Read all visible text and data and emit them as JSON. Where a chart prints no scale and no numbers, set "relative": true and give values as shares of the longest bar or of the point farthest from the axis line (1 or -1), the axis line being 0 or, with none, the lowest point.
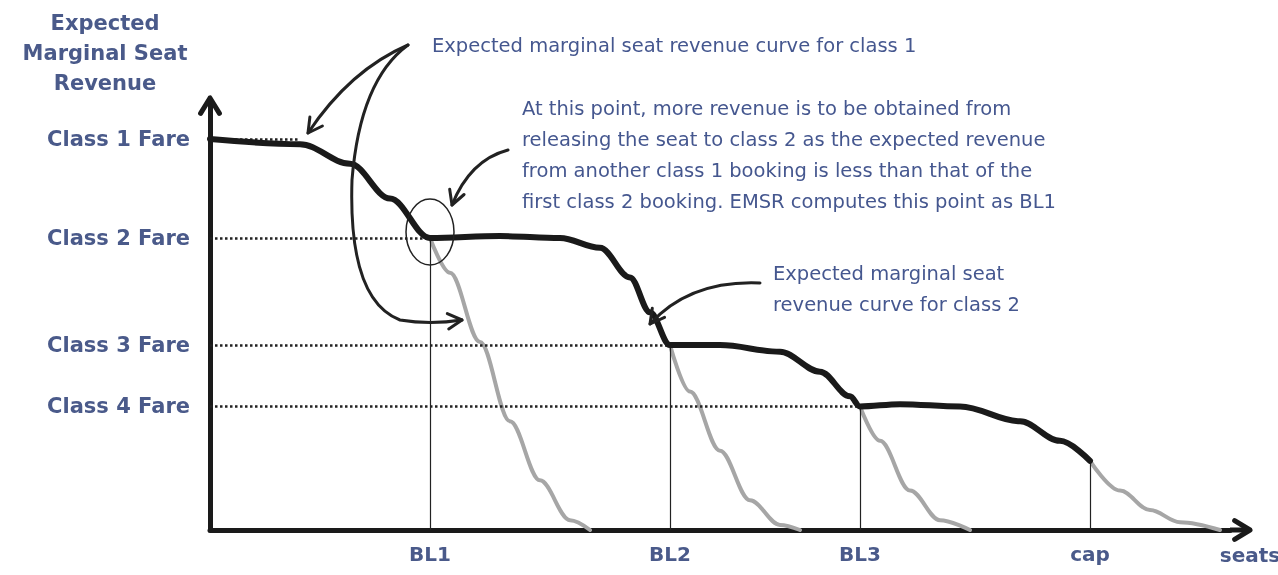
{
  "chart_data": {
    "type": "line",
    "relative": true,
    "xlabel": "seats",
    "ylabel": "Expected Marginal Seat Revenue",
    "grid": false,
    "marker": "none",
    "annotations": [
      "Expected marginal seat revenue curve for class 1",
      "At this point, more revenue is to be obtained from releasing the seat to class 2 as the expected revenue from another class 1 booking is less than that of the first class 2 booking.  EMSR computes this point as BL1",
      "Expected marginal seat revenue curve for class 2"
    ],
    "categories": [
      null,
      null,
      null,
      null,
      null,
      null,
      null,
      null,
      null,
      null,
      null,
      null,
      null,
      null,
      null,
      null,
      null,
      null,
      null,
      null,
      null,
      null,
      "BL1",
      null,
      null,
      null,
      null,
      null,
      null,
      null,
      null,
      null,
      null,
      null,
      null,
      null,
      null,
      null,
      null,
      null,
      null,
      null,
      null,
      null,
      null,
      null,
      "BL2",
      null,
      null,
      null,
      null,
      null,
      null,
      null,
      null,
      null,
      null,
      null,
      null,
      null,
      null,
      null,
      null,
      null,
      null,
      "BL3",
      null,
      null,
      null,
      null,
      null,
      null,
      null,
      null,
      null,
      null,
      null,
      null,
      null,
      null,
      null,
      null,
      null,
      null,
      null,
      null,
      null,
      null,
      "cap",
      null,
      null,
      null,
      null,
      null,
      null,
      null,
      null,
      null,
      null,
      null,
      null,
      null,
      null
    ],
    "series": [
      {
        "color": "#1a1a1a",
        "values": [
          1.0,
          null,
          null,
          null,
          null,
          null,
          null,
          null,
          null,
          0.987,
          null,
          null,
          null,
          null,
          0.937,
          null,
          null,
          null,
          0.848,
          null,
          null,
          null,
          0.747,
          null,
          null,
          null,
          null,
          null,
          null,
          0.752,
          null,
          null,
          null,
          null,
          null,
          0.747,
          null,
          null,
          null,
          0.722,
          null,
          null,
          0.646,
          null,
          0.557,
          null,
          0.473,
          null,
          null,
          null,
          null,
          0.473,
          null,
          null,
          null,
          null,
          null,
          0.456,
          null,
          null,
          null,
          0.405,
          null,
          null,
          0.342,
          0.316,
          null,
          null,
          null,
          0.322,
          null,
          null,
          null,
          null,
          null,
          0.316,
          null,
          null,
          null,
          null,
          null,
          0.278,
          null,
          null,
          null,
          0.228,
          null,
          null,
          0.177,
          null,
          null,
          null,
          null,
          null,
          null,
          null,
          null,
          null,
          null,
          null,
          null,
          null,
          null
        ]
      },
      {
        "color": "#a6a6a6",
        "values": [
          null,
          null,
          null,
          null,
          null,
          null,
          null,
          null,
          null,
          null,
          null,
          null,
          null,
          null,
          null,
          null,
          null,
          null,
          null,
          null,
          null,
          null,
          0.747,
          null,
          0.658,
          null,
          null,
          0.481,
          null,
          null,
          0.278,
          null,
          null,
          0.127,
          null,
          null,
          0.025,
          null,
          0,
          null,
          null,
          null,
          null,
          null,
          null,
          null,
          null,
          null,
          null,
          null,
          null,
          null,
          null,
          null,
          null,
          null,
          null,
          null,
          null,
          null,
          null,
          null,
          null,
          null,
          null,
          null,
          null,
          null,
          null,
          null,
          null,
          null,
          null,
          null,
          null,
          null,
          null,
          null,
          null,
          null,
          null,
          null,
          null,
          null,
          null,
          null,
          null,
          null,
          null,
          null,
          null,
          null,
          null,
          null,
          null,
          null,
          null,
          null,
          null,
          null,
          null,
          null,
          null
        ]
      },
      {
        "color": "#a6a6a6",
        "values": [
          null,
          null,
          null,
          null,
          null,
          null,
          null,
          null,
          null,
          null,
          null,
          null,
          null,
          null,
          null,
          null,
          null,
          null,
          null,
          null,
          null,
          null,
          null,
          null,
          null,
          null,
          null,
          null,
          null,
          null,
          null,
          null,
          null,
          null,
          null,
          null,
          null,
          null,
          null,
          null,
          null,
          null,
          null,
          null,
          null,
          null,
          0.473,
          null,
          0.354,
          null,
          null,
          0.203,
          null,
          null,
          0.076,
          null,
          null,
          0.013,
          null,
          0,
          null,
          null,
          null,
          null,
          null,
          null,
          null,
          null,
          null,
          null,
          null,
          null,
          null,
          null,
          null,
          null,
          null,
          null,
          null,
          null,
          null,
          null,
          null,
          null,
          null,
          null,
          null,
          null,
          null,
          null,
          null,
          null,
          null,
          null,
          null,
          null,
          null,
          null,
          null,
          null,
          null,
          null,
          null
        ]
      },
      {
        "color": "#a6a6a6",
        "values": [
          null,
          null,
          null,
          null,
          null,
          null,
          null,
          null,
          null,
          null,
          null,
          null,
          null,
          null,
          null,
          null,
          null,
          null,
          null,
          null,
          null,
          null,
          null,
          null,
          null,
          null,
          null,
          null,
          null,
          null,
          null,
          null,
          null,
          null,
          null,
          null,
          null,
          null,
          null,
          null,
          null,
          null,
          null,
          null,
          null,
          null,
          null,
          null,
          null,
          null,
          null,
          null,
          null,
          null,
          null,
          null,
          null,
          null,
          null,
          null,
          null,
          null,
          null,
          null,
          null,
          0.316,
          null,
          0.228,
          null,
          null,
          0.101,
          null,
          null,
          0.025,
          null,
          null,
          0,
          null,
          null,
          null,
          null,
          null,
          null,
          null,
          null,
          null,
          null,
          null,
          null,
          null,
          null,
          null,
          null,
          null,
          null,
          null,
          null,
          null,
          null,
          null,
          null,
          null,
          null
        ]
      },
      {
        "color": "#a6a6a6",
        "values": [
          null,
          null,
          null,
          null,
          null,
          null,
          null,
          null,
          null,
          null,
          null,
          null,
          null,
          null,
          null,
          null,
          null,
          null,
          null,
          null,
          null,
          null,
          null,
          null,
          null,
          null,
          null,
          null,
          null,
          null,
          null,
          null,
          null,
          null,
          null,
          null,
          null,
          null,
          null,
          null,
          null,
          null,
          null,
          null,
          null,
          null,
          null,
          null,
          null,
          null,
          null,
          null,
          null,
          null,
          null,
          null,
          null,
          null,
          null,
          null,
          null,
          null,
          null,
          null,
          null,
          null,
          null,
          null,
          null,
          null,
          null,
          null,
          null,
          null,
          null,
          null,
          null,
          null,
          null,
          null,
          null,
          null,
          null,
          null,
          null,
          null,
          null,
          null,
          0.177,
          null,
          null,
          0.101,
          null,
          null,
          0.051,
          null,
          null,
          0.02,
          null,
          null,
          null,
          0,
          null
        ]
      }
    ],
    "ref_lines": [
      {
        "axis": "y",
        "value": 1.0,
        "label": "Class 1 Fare",
        "line_style": "dotted"
      },
      {
        "axis": "y",
        "value": 0.747,
        "label": "Class 2 Fare",
        "line_style": "dotted"
      },
      {
        "axis": "y",
        "value": 0.473,
        "label": "Class 3 Fare",
        "line_style": "dotted"
      },
      {
        "axis": "y",
        "value": 0.316,
        "label": "Class 4 Fare",
        "line_style": "dotted"
      },
      {
        "axis": "x",
        "value": "BL1",
        "line_style": "solid"
      },
      {
        "axis": "x",
        "value": "BL2",
        "line_style": "solid"
      },
      {
        "axis": "x",
        "value": "BL3",
        "line_style": "solid"
      },
      {
        "axis": "x",
        "value": "cap",
        "line_style": "solid"
      }
    ]
  }
}
